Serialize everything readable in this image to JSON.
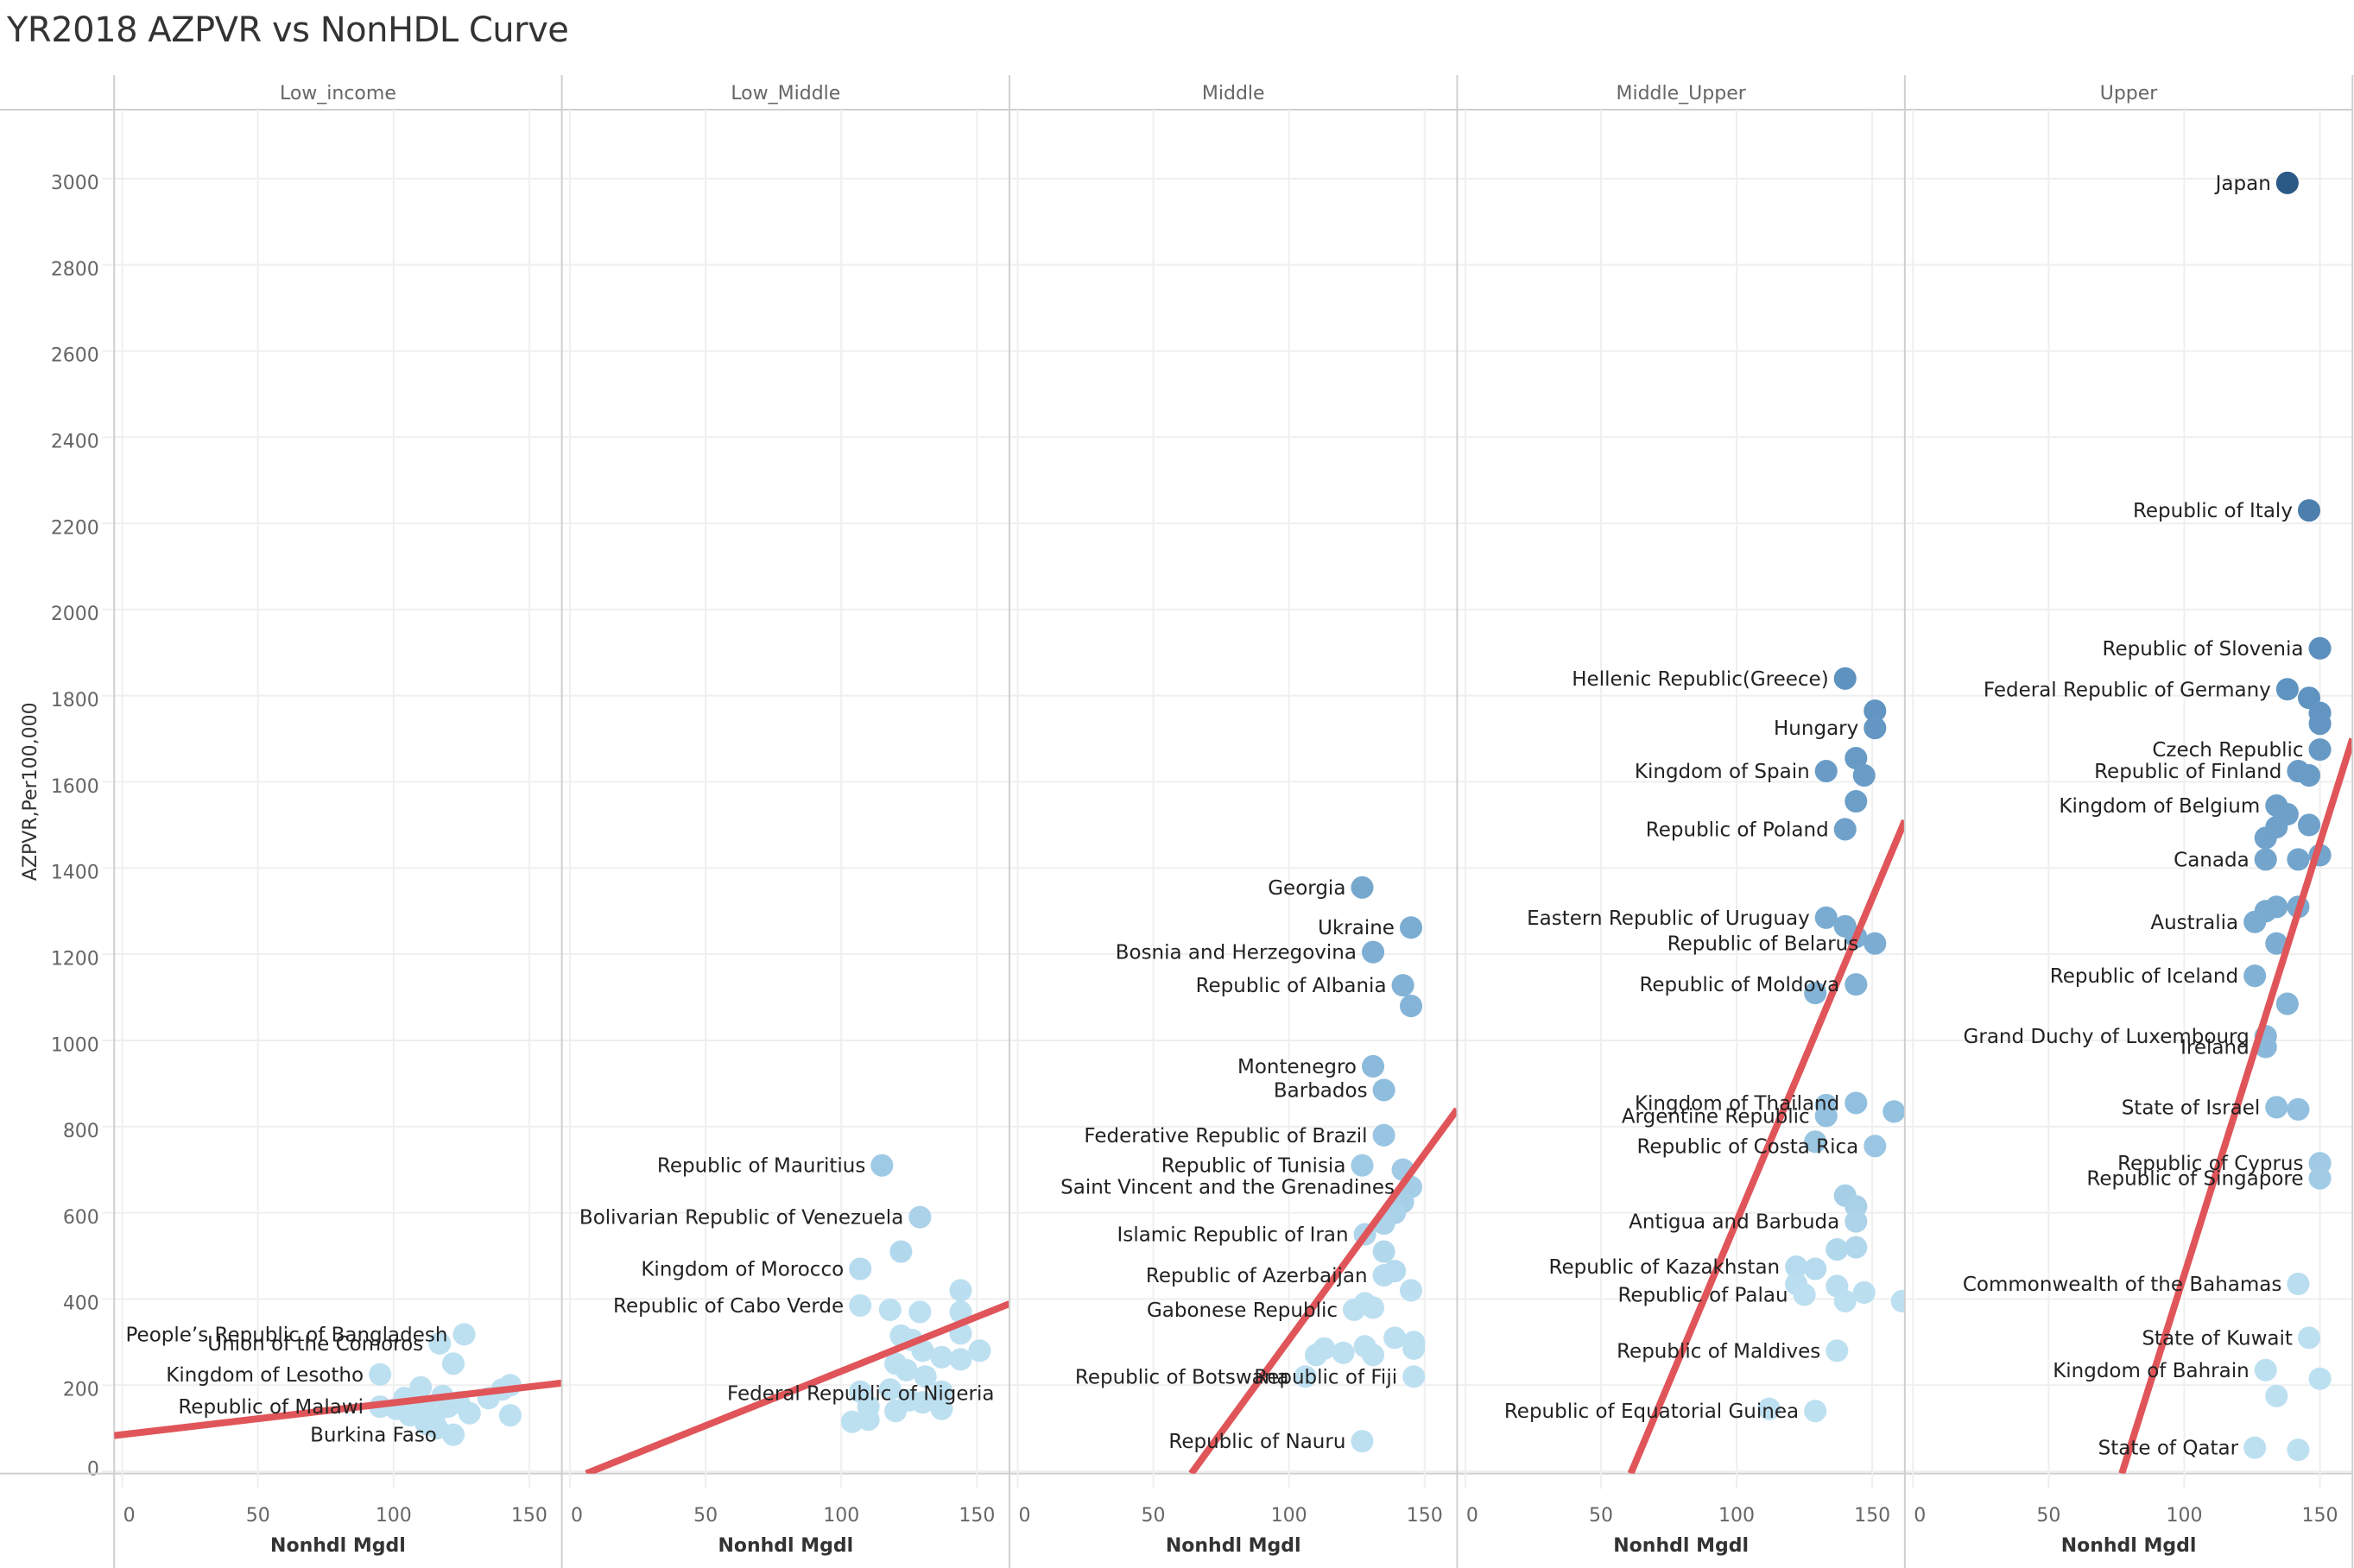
{
  "chart_data": {
    "type": "scatter",
    "title": "YR2018 AZPVR vs NonHDL Curve",
    "xlabel": "Nonhdl Mgdl",
    "ylabel": "AZPVR,Per100,000",
    "ylim": [
      -5,
      3160
    ],
    "xlim": [
      -3,
      162
    ],
    "y_ticks": [
      0,
      200,
      400,
      600,
      800,
      1000,
      1200,
      1400,
      1600,
      1800,
      2000,
      2200,
      2400,
      2600,
      2800,
      3000
    ],
    "x_ticks": [
      0,
      50,
      100,
      150
    ],
    "grid": true,
    "legend": "none",
    "color_encoding": "AZPVR (light blue = low, dark blue = high)",
    "colors": {
      "low": "#bde0f1",
      "mid": "#8dbcdd",
      "high": "#5b8fbd",
      "max": "#2c5a87",
      "trend": "#e05559"
    },
    "panels": [
      {
        "name": "Low_income",
        "trend": {
          "x0": -3,
          "y0": 83,
          "x1": 162,
          "y1": 205
        },
        "points": [
          {
            "x": 126,
            "y": 318,
            "label": "People’s Republic of Bangladesh"
          },
          {
            "x": 117,
            "y": 297,
            "label": "Union of the Comoros"
          },
          {
            "x": 95,
            "y": 225,
            "label": "Kingdom of Lesotho"
          },
          {
            "x": 95,
            "y": 150,
            "label": "Republic of Malawi"
          },
          {
            "x": 122,
            "y": 85,
            "label": "Burkina Faso"
          },
          {
            "x": 122,
            "y": 250
          },
          {
            "x": 104,
            "y": 170
          },
          {
            "x": 108,
            "y": 160
          },
          {
            "x": 110,
            "y": 195
          },
          {
            "x": 112,
            "y": 140
          },
          {
            "x": 112,
            "y": 110
          },
          {
            "x": 106,
            "y": 130
          },
          {
            "x": 115,
            "y": 125
          },
          {
            "x": 118,
            "y": 175
          },
          {
            "x": 120,
            "y": 150
          },
          {
            "x": 124,
            "y": 160
          },
          {
            "x": 128,
            "y": 135
          },
          {
            "x": 135,
            "y": 170
          },
          {
            "x": 140,
            "y": 190
          },
          {
            "x": 143,
            "y": 200
          },
          {
            "x": 143,
            "y": 130
          },
          {
            "x": 101,
            "y": 145
          },
          {
            "x": 116,
            "y": 100
          }
        ]
      },
      {
        "name": "Low_Middle",
        "trend": {
          "x0": 6,
          "y0": -5,
          "x1": 162,
          "y1": 389
        },
        "points": [
          {
            "x": 115,
            "y": 710,
            "label": "Republic of Mauritius"
          },
          {
            "x": 129,
            "y": 590,
            "label": "Bolivarian Republic of Venezuela"
          },
          {
            "x": 107,
            "y": 470,
            "label": "Kingdom of Morocco"
          },
          {
            "x": 107,
            "y": 385,
            "label": "Republic of Cabo Verde"
          },
          {
            "x": 104,
            "y": 115,
            "label": "Federal Republic of Nigeria"
          },
          {
            "x": 122,
            "y": 510
          },
          {
            "x": 144,
            "y": 420
          },
          {
            "x": 118,
            "y": 375
          },
          {
            "x": 129,
            "y": 370
          },
          {
            "x": 144,
            "y": 370
          },
          {
            "x": 122,
            "y": 315
          },
          {
            "x": 126,
            "y": 305
          },
          {
            "x": 144,
            "y": 320
          },
          {
            "x": 151,
            "y": 280
          },
          {
            "x": 130,
            "y": 280
          },
          {
            "x": 137,
            "y": 265
          },
          {
            "x": 144,
            "y": 260
          },
          {
            "x": 120,
            "y": 250
          },
          {
            "x": 124,
            "y": 235
          },
          {
            "x": 131,
            "y": 220
          },
          {
            "x": 107,
            "y": 185
          },
          {
            "x": 110,
            "y": 150
          },
          {
            "x": 118,
            "y": 190
          },
          {
            "x": 125,
            "y": 165
          },
          {
            "x": 130,
            "y": 160
          },
          {
            "x": 137,
            "y": 185
          },
          {
            "x": 137,
            "y": 145
          },
          {
            "x": 110,
            "y": 120
          },
          {
            "x": 120,
            "y": 140
          }
        ]
      },
      {
        "name": "Middle",
        "trend": {
          "x0": 64,
          "y0": -5,
          "x1": 162,
          "y1": 840
        },
        "points": [
          {
            "x": 127,
            "y": 1355,
            "label": "Georgia"
          },
          {
            "x": 145,
            "y": 1262,
            "label": "Ukraine"
          },
          {
            "x": 131,
            "y": 1205,
            "label": "Bosnia and Herzegovina"
          },
          {
            "x": 142,
            "y": 1128,
            "label": "Republic of Albania"
          },
          {
            "x": 145,
            "y": 1080
          },
          {
            "x": 131,
            "y": 940,
            "label": "Montenegro"
          },
          {
            "x": 135,
            "y": 885,
            "label": "Barbados"
          },
          {
            "x": 135,
            "y": 780,
            "label": "Federative Republic of Brazil"
          },
          {
            "x": 127,
            "y": 710,
            "label": "Republic of Tunisia"
          },
          {
            "x": 142,
            "y": 700
          },
          {
            "x": 145,
            "y": 660,
            "label": "Saint Vincent and the Grenadines"
          },
          {
            "x": 142,
            "y": 625
          },
          {
            "x": 139,
            "y": 600
          },
          {
            "x": 135,
            "y": 575
          },
          {
            "x": 128,
            "y": 550,
            "label": "Islamic Republic of Iran"
          },
          {
            "x": 135,
            "y": 510
          },
          {
            "x": 135,
            "y": 455,
            "label": "Republic of Azerbaijan"
          },
          {
            "x": 139,
            "y": 465
          },
          {
            "x": 145,
            "y": 420
          },
          {
            "x": 124,
            "y": 375,
            "label": "Gabonese Republic"
          },
          {
            "x": 128,
            "y": 390
          },
          {
            "x": 131,
            "y": 380
          },
          {
            "x": 110,
            "y": 270
          },
          {
            "x": 113,
            "y": 285
          },
          {
            "x": 120,
            "y": 275
          },
          {
            "x": 128,
            "y": 290
          },
          {
            "x": 131,
            "y": 270
          },
          {
            "x": 139,
            "y": 310
          },
          {
            "x": 146,
            "y": 300
          },
          {
            "x": 146,
            "y": 285
          },
          {
            "x": 106,
            "y": 220,
            "label": "Republic of Botswana"
          },
          {
            "x": 146,
            "y": 220,
            "label": "Republic of Fiji"
          },
          {
            "x": 127,
            "y": 70,
            "label": "Republic of Nauru"
          }
        ]
      },
      {
        "name": "Middle_Upper",
        "trend": {
          "x0": 61,
          "y0": -5,
          "x1": 162,
          "y1": 1510
        },
        "points": [
          {
            "x": 140,
            "y": 1840,
            "label": "Hellenic Republic(Greece)"
          },
          {
            "x": 151,
            "y": 1765
          },
          {
            "x": 151,
            "y": 1725,
            "label": "Hungary"
          },
          {
            "x": 144,
            "y": 1655
          },
          {
            "x": 133,
            "y": 1625,
            "label": "Kingdom of Spain"
          },
          {
            "x": 147,
            "y": 1615
          },
          {
            "x": 144,
            "y": 1555
          },
          {
            "x": 140,
            "y": 1490,
            "label": "Republic of Poland"
          },
          {
            "x": 133,
            "y": 1285,
            "label": "Eastern Republic of Uruguay"
          },
          {
            "x": 140,
            "y": 1265
          },
          {
            "x": 144,
            "y": 1240
          },
          {
            "x": 151,
            "y": 1225,
            "label": "Republic of Belarus"
          },
          {
            "x": 129,
            "y": 1110
          },
          {
            "x": 144,
            "y": 1130,
            "label": "Republic of Moldova"
          },
          {
            "x": 133,
            "y": 850
          },
          {
            "x": 144,
            "y": 855,
            "label": "Kingdom of Thailand"
          },
          {
            "x": 158,
            "y": 835
          },
          {
            "x": 133,
            "y": 825,
            "label": "Argentine Republic"
          },
          {
            "x": 129,
            "y": 765
          },
          {
            "x": 151,
            "y": 755,
            "label": "Republic of Costa Rica"
          },
          {
            "x": 140,
            "y": 640
          },
          {
            "x": 144,
            "y": 615
          },
          {
            "x": 144,
            "y": 580,
            "label": "Antigua and Barbuda"
          },
          {
            "x": 137,
            "y": 515
          },
          {
            "x": 144,
            "y": 520
          },
          {
            "x": 122,
            "y": 475,
            "label": "Republic of Kazakhstan"
          },
          {
            "x": 129,
            "y": 470
          },
          {
            "x": 122,
            "y": 435
          },
          {
            "x": 125,
            "y": 410,
            "label": "Republic of Palau"
          },
          {
            "x": 137,
            "y": 430
          },
          {
            "x": 140,
            "y": 395
          },
          {
            "x": 147,
            "y": 415
          },
          {
            "x": 161,
            "y": 395
          },
          {
            "x": 137,
            "y": 280,
            "label": "Republic of Maldives"
          },
          {
            "x": 112,
            "y": 145
          },
          {
            "x": 129,
            "y": 140,
            "label": "Republic of Equatorial Guinea"
          }
        ]
      },
      {
        "name": "Upper",
        "trend": {
          "x0": 77,
          "y0": -5,
          "x1": 162,
          "y1": 1700
        },
        "points": [
          {
            "x": 138,
            "y": 2990,
            "label": "Japan"
          },
          {
            "x": 146,
            "y": 2230,
            "label": "Republic of Italy"
          },
          {
            "x": 150,
            "y": 1910,
            "label": "Republic of Slovenia"
          },
          {
            "x": 138,
            "y": 1815,
            "label": "Federal Republic of Germany"
          },
          {
            "x": 146,
            "y": 1795
          },
          {
            "x": 150,
            "y": 1760
          },
          {
            "x": 150,
            "y": 1735
          },
          {
            "x": 150,
            "y": 1675,
            "label": "Czech Republic"
          },
          {
            "x": 142,
            "y": 1625,
            "label": "Republic of Finland"
          },
          {
            "x": 146,
            "y": 1615
          },
          {
            "x": 134,
            "y": 1545,
            "label": "Kingdom of Belgium"
          },
          {
            "x": 138,
            "y": 1525
          },
          {
            "x": 146,
            "y": 1500
          },
          {
            "x": 134,
            "y": 1495
          },
          {
            "x": 130,
            "y": 1470
          },
          {
            "x": 130,
            "y": 1420,
            "label": "Canada"
          },
          {
            "x": 142,
            "y": 1420
          },
          {
            "x": 150,
            "y": 1430
          },
          {
            "x": 134,
            "y": 1310
          },
          {
            "x": 130,
            "y": 1300
          },
          {
            "x": 142,
            "y": 1310
          },
          {
            "x": 126,
            "y": 1275,
            "label": "Australia"
          },
          {
            "x": 134,
            "y": 1225
          },
          {
            "x": 126,
            "y": 1150,
            "label": "Republic of Iceland"
          },
          {
            "x": 138,
            "y": 1085
          },
          {
            "x": 130,
            "y": 1010,
            "label": "Grand Duchy of Luxembourg"
          },
          {
            "x": 130,
            "y": 985,
            "label": "Ireland"
          },
          {
            "x": 134,
            "y": 845,
            "label": "State of Israel"
          },
          {
            "x": 142,
            "y": 840
          },
          {
            "x": 150,
            "y": 715,
            "label": "Republic of Cyprus"
          },
          {
            "x": 150,
            "y": 680,
            "label": "Republic of Singapore"
          },
          {
            "x": 142,
            "y": 435,
            "label": "Commonwealth of the Bahamas"
          },
          {
            "x": 146,
            "y": 310,
            "label": "State of Kuwait"
          },
          {
            "x": 130,
            "y": 235,
            "label": "Kingdom of Bahrain"
          },
          {
            "x": 150,
            "y": 215
          },
          {
            "x": 134,
            "y": 175
          },
          {
            "x": 126,
            "y": 55,
            "label": "State of Qatar"
          },
          {
            "x": 142,
            "y": 50
          }
        ]
      }
    ]
  }
}
